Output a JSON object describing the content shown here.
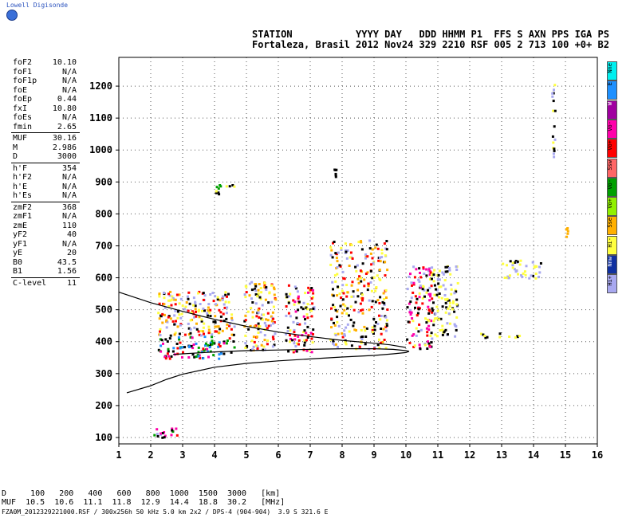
{
  "app": {
    "title": "Lowell Digisonde"
  },
  "header": {
    "line1": "STATION           YYYY DAY   DDD HHMM P1  FFS S AXN PPS IGA PS",
    "line2": "Fortaleza, Brasil 2012 Nov24 329 2210 RSF 005 2 713 100 +0+ B2"
  },
  "params": [
    {
      "name": "foF2",
      "value": "10.10"
    },
    {
      "name": "foF1",
      "value": "N/A"
    },
    {
      "name": "foF1p",
      "value": "N/A"
    },
    {
      "name": "foE",
      "value": "N/A"
    },
    {
      "name": "foEp",
      "value": "0.44"
    },
    {
      "name": "fxI",
      "value": "10.80"
    },
    {
      "name": "foEs",
      "value": "N/A"
    },
    {
      "name": "fmin",
      "value": "2.65"
    },
    {
      "name": "MUF",
      "value": "30.16"
    },
    {
      "name": "M",
      "value": "2.986"
    },
    {
      "name": "D",
      "value": "3000"
    },
    {
      "name": "h'F",
      "value": "354"
    },
    {
      "name": "h'F2",
      "value": "N/A"
    },
    {
      "name": "h'E",
      "value": "N/A"
    },
    {
      "name": "h'Es",
      "value": "N/A"
    },
    {
      "name": "zmF2",
      "value": "368"
    },
    {
      "name": "zmF1",
      "value": "N/A"
    },
    {
      "name": "zmE",
      "value": "110"
    },
    {
      "name": "yF2",
      "value": "40"
    },
    {
      "name": "yF1",
      "value": "N/A"
    },
    {
      "name": "yE",
      "value": "20"
    },
    {
      "name": "B0",
      "value": "43.5"
    },
    {
      "name": "B1",
      "value": "1.56"
    },
    {
      "name": "C-level",
      "value": "11"
    }
  ],
  "muf_table": {
    "d_row": "D     100   200   400   600   800  1000  1500  3000   [km]",
    "muf_row": "MUF  10.5  10.6  11.1  11.8  12.9  14.4  18.8  30.2   [MHz]"
  },
  "footer": "FZA0M_2012329221000.RSF / 300x256h 50 kHz 5.0 km 2x2 / DPS-4 (904-904)  3.9 S 321.6 E",
  "legend": [
    {
      "label": "Nne",
      "color": "#00f0f0"
    },
    {
      "label": "E",
      "color": "#1e90ff"
    },
    {
      "label": "W",
      "color": "#a000a0"
    },
    {
      "label": "Vo-",
      "color": "#ff00aa"
    },
    {
      "label": "Vo+",
      "color": "#ff0000"
    },
    {
      "label": "Ssw",
      "color": "#ff6666"
    },
    {
      "label": "Vo-",
      "color": "#00a000"
    },
    {
      "label": "Vo+",
      "color": "#90f000"
    },
    {
      "label": "Sse",
      "color": "#ffb000"
    },
    {
      "label": "Hi-",
      "color": "#ffff40"
    },
    {
      "label": "Nnw",
      "color": "#1030a0"
    },
    {
      "label": "Hi+",
      "color": "#a8a8f0"
    }
  ],
  "chart_data": {
    "type": "scatter",
    "title": "",
    "xlabel": "",
    "ylabel": "",
    "xlim": [
      1,
      16
    ],
    "ylim": [
      80,
      1290
    ],
    "x_ticks": [
      1,
      2,
      3,
      4,
      5,
      6,
      7,
      8,
      9,
      10,
      11,
      12,
      13,
      14,
      15,
      16
    ],
    "y_ticks": [
      100,
      200,
      300,
      400,
      500,
      600,
      700,
      800,
      900,
      1000,
      1100,
      1200
    ],
    "grid": true,
    "series": [
      {
        "name": "",
        "kind": "line",
        "color": "#000000",
        "x": [
          1.0,
          2.0,
          3.0,
          4.0,
          5.0,
          6.0,
          7.0,
          8.0,
          9.0,
          9.5,
          10.0
        ],
        "y": [
          555,
          522,
          495,
          470,
          448,
          430,
          416,
          404,
          395,
          390,
          382
        ]
      },
      {
        "name": "",
        "kind": "line",
        "color": "#000000",
        "x": [
          1.25,
          2.0,
          2.5,
          3.0,
          4.0,
          5.0,
          6.0,
          7.0,
          8.0,
          9.0,
          9.6,
          10.0,
          10.1
        ],
        "y": [
          240,
          262,
          282,
          298,
          320,
          332,
          340,
          346,
          352,
          357,
          362,
          366,
          370
        ]
      },
      {
        "name": "",
        "kind": "line",
        "color": "#000000",
        "x": [
          2.7,
          3.0,
          4.0,
          5.0,
          6.0,
          7.0,
          8.0,
          9.0,
          9.6,
          10.0,
          10.1
        ],
        "y": [
          360,
          362,
          368,
          372,
          374,
          376,
          378,
          378,
          376,
          372,
          370
        ]
      }
    ],
    "traces": [
      {
        "x0": 2.0,
        "x1": 2.9,
        "y0": 100,
        "y1": 135,
        "colors": [
          "#ff0000",
          "#000000",
          "#00a000",
          "#a8a8f0",
          "#ff00aa"
        ]
      },
      {
        "x0": 2.2,
        "x1": 4.6,
        "y0": 350,
        "y1": 420,
        "colors": [
          "#ff0000",
          "#000000",
          "#ff00aa",
          "#00a000",
          "#1e90ff"
        ]
      },
      {
        "x0": 2.2,
        "x1": 4.6,
        "y0": 420,
        "y1": 560,
        "colors": [
          "#ffff40",
          "#a8a8f0",
          "#000000",
          "#ff0000",
          "#ffb000"
        ]
      },
      {
        "x0": 4.9,
        "x1": 5.9,
        "y0": 370,
        "y1": 590,
        "colors": [
          "#ffff40",
          "#ff0000",
          "#a8a8f0",
          "#000000",
          "#ffb000"
        ]
      },
      {
        "x0": 6.2,
        "x1": 7.1,
        "y0": 370,
        "y1": 580,
        "colors": [
          "#ffff40",
          "#ff0000",
          "#a8a8f0",
          "#000000",
          "#ff00aa"
        ]
      },
      {
        "x0": 7.6,
        "x1": 9.4,
        "y0": 380,
        "y1": 720,
        "colors": [
          "#ffff40",
          "#a8a8f0",
          "#ff0000",
          "#000000",
          "#ffb000"
        ]
      },
      {
        "x0": 10.0,
        "x1": 10.8,
        "y0": 380,
        "y1": 640,
        "colors": [
          "#ffff40",
          "#ff0000",
          "#a8a8f0",
          "#000000",
          "#ff00aa"
        ]
      },
      {
        "x0": 10.8,
        "x1": 11.6,
        "y0": 420,
        "y1": 640,
        "colors": [
          "#a8a8f0",
          "#ffff40",
          "#000000"
        ]
      },
      {
        "x0": 3.9,
        "x1": 4.6,
        "y0": 865,
        "y1": 895,
        "colors": [
          "#000000",
          "#ffff40",
          "#00a000"
        ]
      },
      {
        "x0": 12.2,
        "x1": 13.6,
        "y0": 415,
        "y1": 430,
        "colors": [
          "#ffff40",
          "#000000"
        ]
      },
      {
        "x0": 13.0,
        "x1": 14.2,
        "y0": 600,
        "y1": 660,
        "colors": [
          "#a8a8f0",
          "#ffff40",
          "#000000"
        ]
      },
      {
        "x0": 14.55,
        "x1": 14.65,
        "y0": 980,
        "y1": 1280,
        "colors": [
          "#000000",
          "#ffff40",
          "#a8a8f0"
        ]
      },
      {
        "x0": 7.72,
        "x1": 7.78,
        "y0": 910,
        "y1": 955,
        "colors": [
          "#000000"
        ]
      },
      {
        "x0": 14.98,
        "x1": 15.04,
        "y0": 730,
        "y1": 760,
        "colors": [
          "#ffb000"
        ]
      }
    ]
  }
}
